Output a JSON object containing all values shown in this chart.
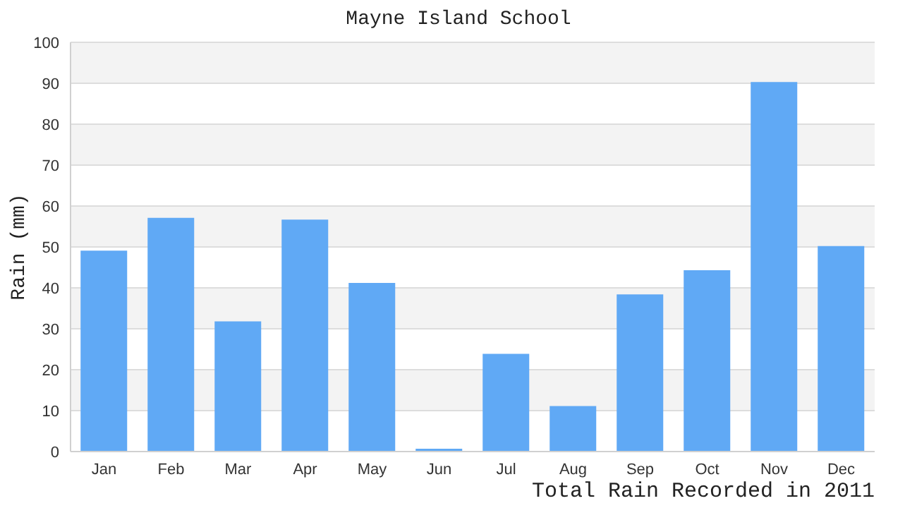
{
  "chart_data": {
    "type": "bar",
    "title": "Mayne Island School",
    "xlabel": "Total Rain Recorded in 2011",
    "ylabel": "Rain (mm)",
    "categories": [
      "Jan",
      "Feb",
      "Mar",
      "Apr",
      "May",
      "Jun",
      "Jul",
      "Aug",
      "Sep",
      "Oct",
      "Nov",
      "Dec"
    ],
    "values": [
      49.1,
      57.1,
      31.8,
      56.7,
      41.2,
      0.7,
      23.9,
      11.1,
      38.4,
      44.3,
      90.3,
      50.2
    ],
    "color": "#60a9f5",
    "ylim": [
      0,
      100
    ],
    "yticks": [
      0,
      10,
      20,
      30,
      40,
      50,
      60,
      70,
      80,
      90,
      100
    ],
    "grid": "y"
  }
}
